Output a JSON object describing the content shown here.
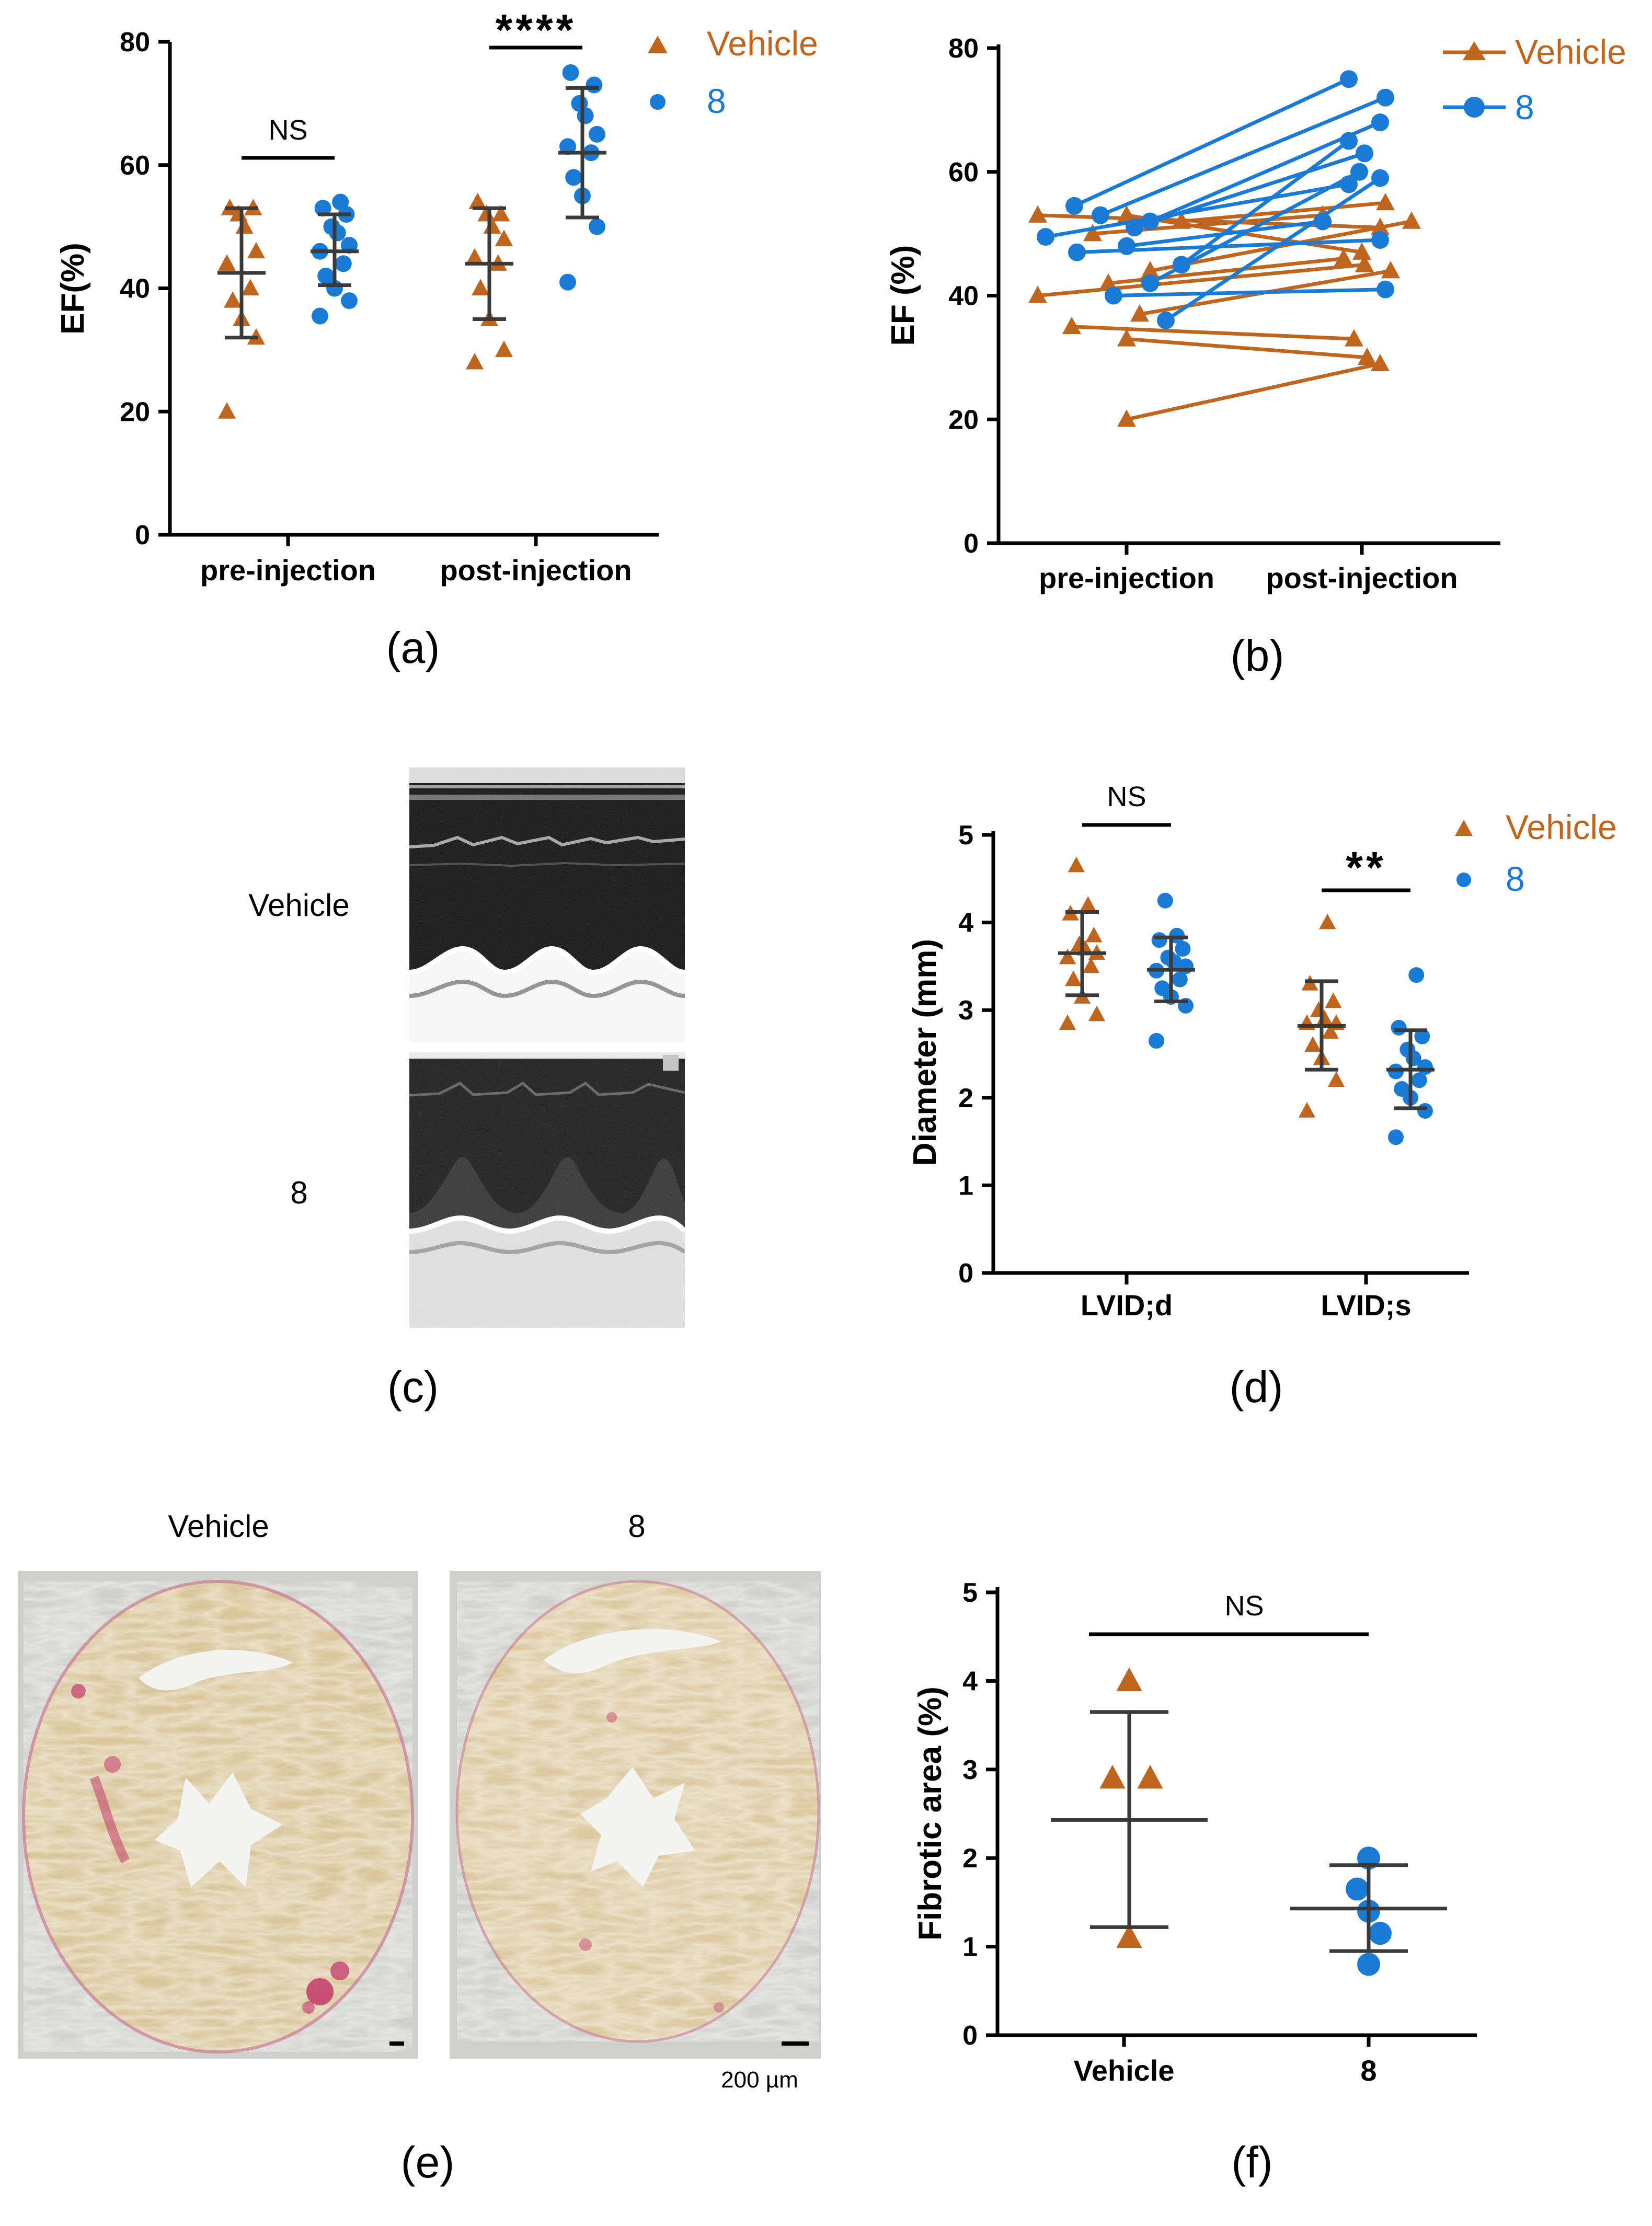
{
  "colors": {
    "vehicle": "#C0651E",
    "compound": "#1A7BD6"
  },
  "legend": {
    "vehicle": "Vehicle",
    "compound": "8"
  },
  "panel_labels": [
    "(a)",
    "(b)",
    "(c)",
    "(d)",
    "(e)",
    "(f)"
  ],
  "images": {
    "c_row_labels": [
      "Vehicle",
      "8"
    ],
    "e_titles": [
      "Vehicle",
      "8"
    ],
    "scale_bar": "200 µm"
  },
  "chart_data": [
    {
      "id": "a",
      "type": "scatter",
      "title": "",
      "xlabel": "",
      "ylabel": "EF(%)",
      "ylim": [
        0,
        80
      ],
      "yticks": [
        0,
        20,
        40,
        60,
        80
      ],
      "categories": [
        "pre-injection",
        "post-injection"
      ],
      "series": [
        {
          "name": "Vehicle",
          "values": [
            [
              20,
              32,
              35,
              38,
              40,
              44,
              46,
              50,
              52,
              53,
              53
            ],
            [
              28,
              30,
              35,
              40,
              44,
              45,
              48,
              50,
              52,
              52,
              54
            ]
          ]
        },
        {
          "name": "8",
          "values": [
            [
              35.5,
              38,
              40,
              42,
              44,
              46,
              47,
              49,
              50,
              52,
              53,
              54
            ],
            [
              41,
              50,
              55,
              58,
              62,
              63,
              65,
              68,
              70,
              73,
              75
            ]
          ]
        }
      ],
      "summary": {
        "Vehicle": [
          {
            "mean": 42.5,
            "sd_low": 32.0,
            "sd_high": 53.0
          },
          {
            "mean": 44.0,
            "sd_low": 35.0,
            "sd_high": 53.0
          }
        ],
        "8": [
          {
            "mean": 46.0,
            "sd_low": 40.5,
            "sd_high": 52.0
          },
          {
            "mean": 62.0,
            "sd_low": 51.5,
            "sd_high": 72.5
          }
        ]
      },
      "annotations": [
        {
          "category": "pre-injection",
          "text": "NS"
        },
        {
          "category": "post-injection",
          "text": "****"
        }
      ]
    },
    {
      "id": "b",
      "type": "line",
      "title": "",
      "xlabel": "",
      "ylabel": "EF (%)",
      "ylim": [
        0,
        80
      ],
      "yticks": [
        0,
        20,
        40,
        60,
        80
      ],
      "categories": [
        "pre-injection",
        "post-injection"
      ],
      "series": [
        {
          "name": "Vehicle",
          "pairs": [
            [
              53,
              47
            ],
            [
              53,
              51
            ],
            [
              52,
              55
            ],
            [
              50,
              53
            ],
            [
              44,
              52
            ],
            [
              42,
              46
            ],
            [
              40,
              45
            ],
            [
              37,
              44
            ],
            [
              35,
              33
            ],
            [
              33,
              30
            ],
            [
              20,
              29
            ]
          ]
        },
        {
          "name": "8",
          "pairs": [
            [
              54.5,
              75
            ],
            [
              53,
              72
            ],
            [
              52,
              68
            ],
            [
              51,
              63
            ],
            [
              49.5,
              58
            ],
            [
              48,
              52
            ],
            [
              47,
              49
            ],
            [
              45,
              65
            ],
            [
              42,
              60
            ],
            [
              40,
              41
            ],
            [
              36,
              59
            ]
          ]
        }
      ]
    },
    {
      "id": "d",
      "type": "scatter",
      "title": "",
      "xlabel": "",
      "ylabel": "Diameter (mm)",
      "ylim": [
        0,
        5
      ],
      "yticks": [
        0,
        1,
        2,
        3,
        4,
        5
      ],
      "categories": [
        "LVID;d",
        "LVID;s"
      ],
      "series": [
        {
          "name": "Vehicle",
          "values": [
            [
              2.85,
              2.95,
              3.15,
              3.35,
              3.5,
              3.6,
              3.65,
              3.7,
              3.75,
              3.85,
              4.1,
              4.2,
              4.65
            ],
            [
              1.85,
              2.2,
              2.45,
              2.6,
              2.75,
              2.85,
              2.85,
              2.9,
              3.0,
              3.1,
              3.3,
              4.0
            ]
          ]
        },
        {
          "name": "8",
          "values": [
            [
              2.65,
              3.05,
              3.15,
              3.25,
              3.35,
              3.45,
              3.5,
              3.55,
              3.6,
              3.7,
              3.8,
              3.85,
              4.25
            ],
            [
              1.55,
              1.85,
              2.0,
              2.1,
              2.2,
              2.3,
              2.35,
              2.45,
              2.55,
              2.7,
              2.8,
              3.4
            ]
          ]
        }
      ],
      "summary": {
        "Vehicle": [
          {
            "mean": 3.65,
            "sd_low": 3.17,
            "sd_high": 4.12
          },
          {
            "mean": 2.82,
            "sd_low": 2.32,
            "sd_high": 3.33
          }
        ],
        "8": [
          {
            "mean": 3.46,
            "sd_low": 3.1,
            "sd_high": 3.83
          },
          {
            "mean": 2.32,
            "sd_low": 1.88,
            "sd_high": 2.77
          }
        ]
      },
      "annotations": [
        {
          "category": "LVID;d",
          "text": "NS"
        },
        {
          "category": "LVID;s",
          "text": "**"
        }
      ]
    },
    {
      "id": "f",
      "type": "scatter",
      "title": "",
      "xlabel": "",
      "ylabel": "Fibrotic area (%)",
      "ylim": [
        0,
        5
      ],
      "yticks": [
        0,
        1,
        2,
        3,
        4,
        5
      ],
      "categories": [
        "Vehicle",
        "8"
      ],
      "series": [
        {
          "name": "Vehicle",
          "values": [
            [
              4.0,
              2.9,
              2.9,
              1.1
            ]
          ]
        },
        {
          "name": "8",
          "values": [
            [
              2.0,
              1.65,
              1.4,
              1.15,
              0.8
            ]
          ]
        }
      ],
      "summary": {
        "Vehicle": [
          {
            "mean": 2.43,
            "sd_low": 1.22,
            "sd_high": 3.65
          }
        ],
        "8": [
          {
            "mean": 1.43,
            "sd_low": 0.95,
            "sd_high": 1.92
          }
        ]
      },
      "annotations": [
        {
          "category": "between",
          "text": "NS"
        }
      ]
    }
  ]
}
